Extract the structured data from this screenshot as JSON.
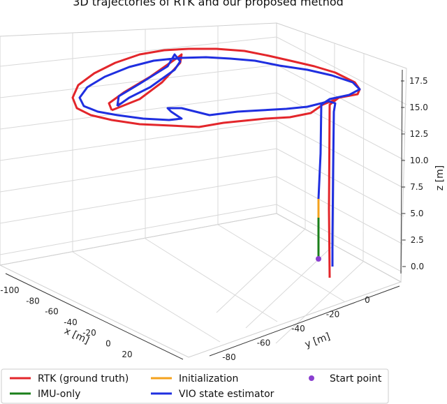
{
  "chart_data": {
    "type": "line3d",
    "title": "3D trajectories of RTK and our proposed method",
    "xlabel": "x [m]",
    "ylabel": "y [m]",
    "zlabel": "z [m]",
    "x_ticks": [
      "-100",
      "-80",
      "-60",
      "-40",
      "-20",
      "0",
      "20"
    ],
    "y_ticks": [
      "-80",
      "-60",
      "-40",
      "-20",
      "0"
    ],
    "z_ticks": [
      "0.0",
      "2.5",
      "5.0",
      "7.5",
      "10.0",
      "12.5",
      "15.0",
      "17.5"
    ],
    "grid": true,
    "legend_position": "bottom",
    "series": [
      {
        "name": "RTK (ground truth)",
        "color": "#e3262b"
      },
      {
        "name": "IMU-only",
        "color": "#1a7f1a"
      },
      {
        "name": "Initialization",
        "color": "#f4a21d"
      },
      {
        "name": "VIO state estimator",
        "color": "#1f2fe0"
      },
      {
        "name": "Start point",
        "color": "#8a3fd0",
        "marker": "dot"
      }
    ]
  }
}
